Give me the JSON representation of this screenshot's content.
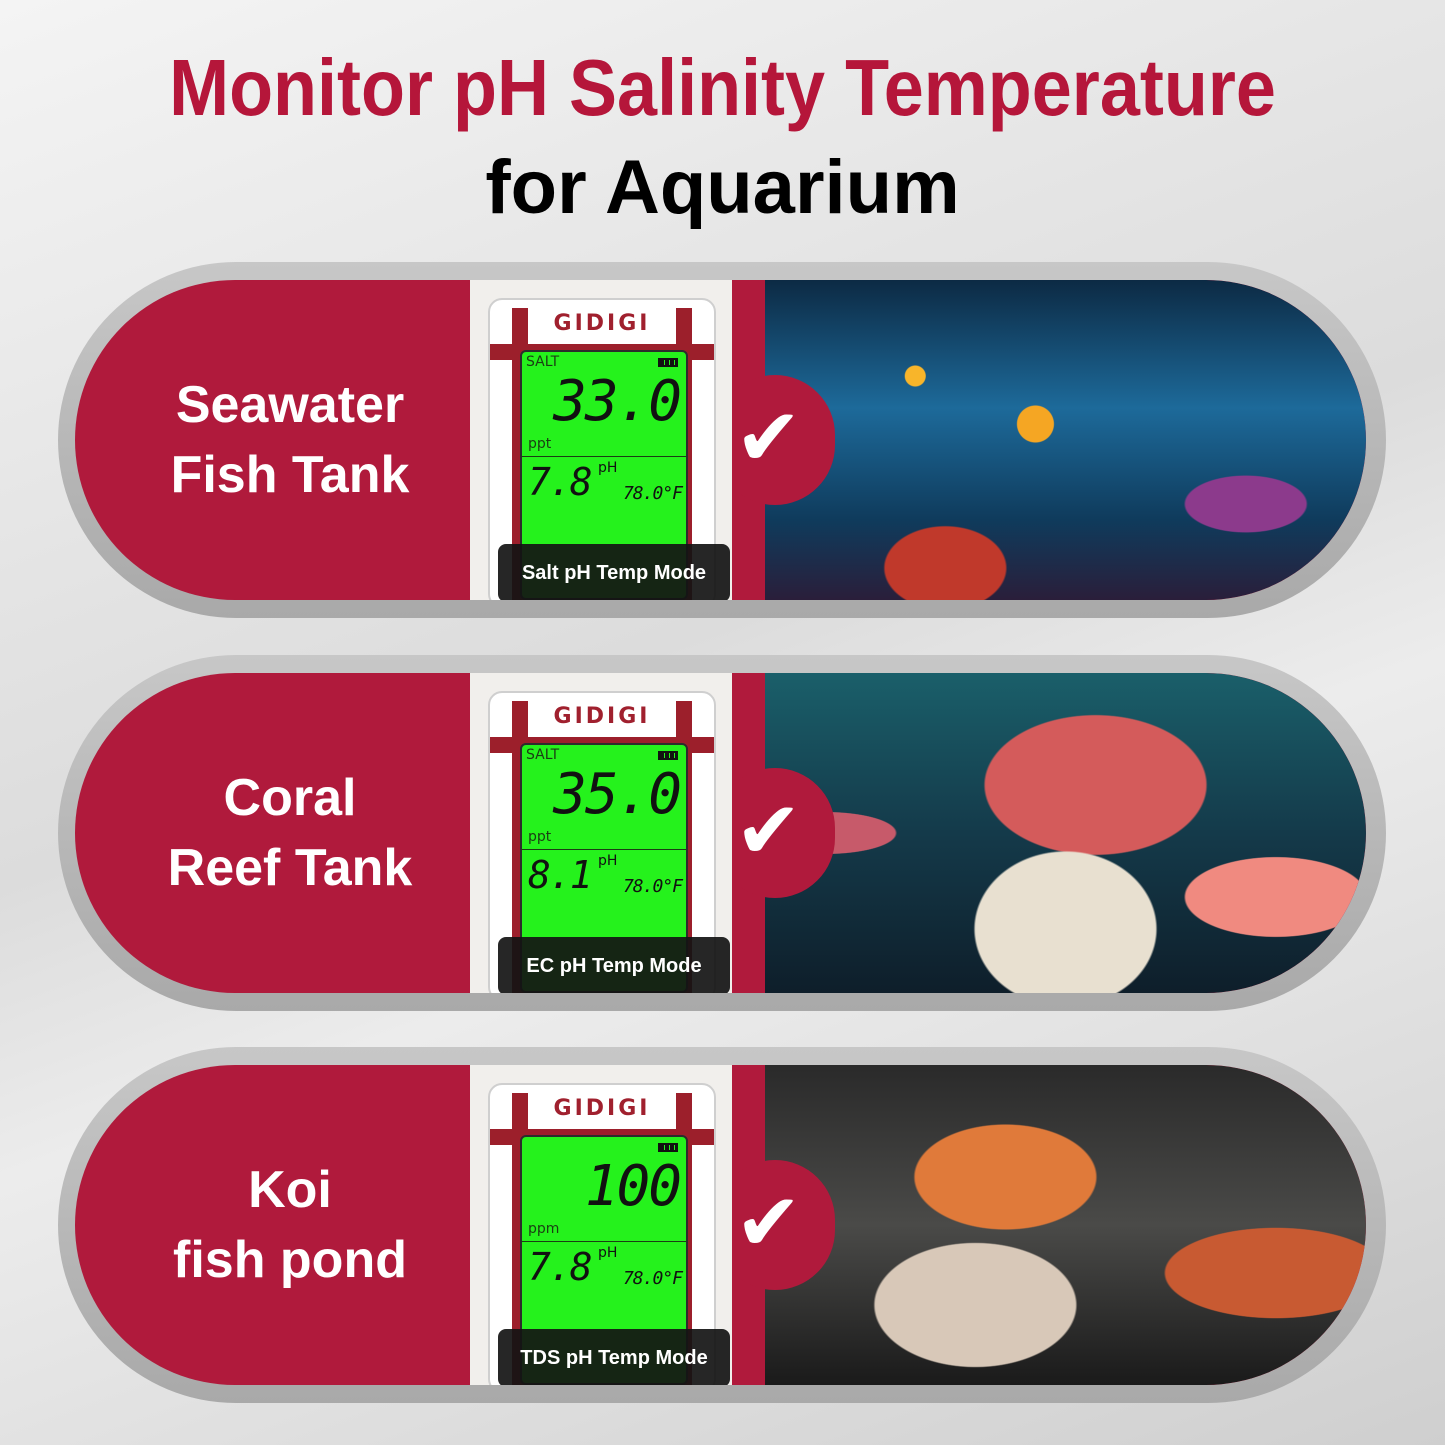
{
  "header": {
    "title_line1": "Monitor pH Salinity Temperature",
    "title_line2": "for Aquarium"
  },
  "accent_color": "#b01a3c",
  "panels": [
    {
      "label_line1": "Seawater",
      "label_line2": "Fish Tank",
      "brand": "GIDIGI",
      "mode": "SALT",
      "main_value": "33.0",
      "unit": "ppt",
      "ph_value": "7.8",
      "ph_label": "pH",
      "temp_value": "78.0°F",
      "caption": "Salt pH Temp Mode",
      "icon": "checkmark-icon",
      "photo": "aquarium with goldfish and coral"
    },
    {
      "label_line1": "Coral",
      "label_line2": "Reef Tank",
      "brand": "GIDIGI",
      "mode": "SALT",
      "main_value": "35.0",
      "unit": "ppt",
      "ph_value": "8.1",
      "ph_label": "pH",
      "temp_value": "78.0°F",
      "caption": "EC pH Temp Mode",
      "icon": "checkmark-icon",
      "photo": "coral reef"
    },
    {
      "label_line1": "Koi",
      "label_line2": "fish pond",
      "brand": "GIDIGI",
      "mode": "",
      "main_value": "100",
      "unit": "ppm",
      "ph_value": "7.8",
      "ph_label": "pH",
      "temp_value": "78.0°F",
      "caption": "TDS pH Temp Mode",
      "icon": "checkmark-icon",
      "photo": "koi fish in pond"
    }
  ]
}
